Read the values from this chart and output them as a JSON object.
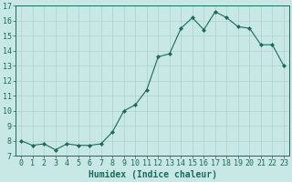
{
  "x": [
    0,
    1,
    2,
    3,
    4,
    5,
    6,
    7,
    8,
    9,
    10,
    11,
    12,
    13,
    14,
    15,
    16,
    17,
    18,
    19,
    20,
    21,
    22,
    23
  ],
  "y": [
    8.0,
    7.7,
    7.8,
    7.4,
    7.8,
    7.7,
    7.7,
    7.8,
    8.6,
    10.0,
    10.4,
    11.4,
    13.6,
    13.8,
    15.5,
    16.2,
    15.4,
    16.6,
    16.2,
    15.6,
    15.5,
    14.4,
    14.4,
    13.0
  ],
  "xlabel": "Humidex (Indice chaleur)",
  "xlim": [
    -0.5,
    23.5
  ],
  "ylim": [
    7,
    17
  ],
  "yticks": [
    7,
    8,
    9,
    10,
    11,
    12,
    13,
    14,
    15,
    16,
    17
  ],
  "xticks": [
    0,
    1,
    2,
    3,
    4,
    5,
    6,
    7,
    8,
    9,
    10,
    11,
    12,
    13,
    14,
    15,
    16,
    17,
    18,
    19,
    20,
    21,
    22,
    23
  ],
  "line_color": "#1a6b5a",
  "marker_color": "#1a6b5a",
  "bg_color": "#c8e8e5",
  "grid_color": "#b0d0cc",
  "tick_color": "#1a6b5a",
  "label_color": "#1a6b5a",
  "font_size": 6.0
}
